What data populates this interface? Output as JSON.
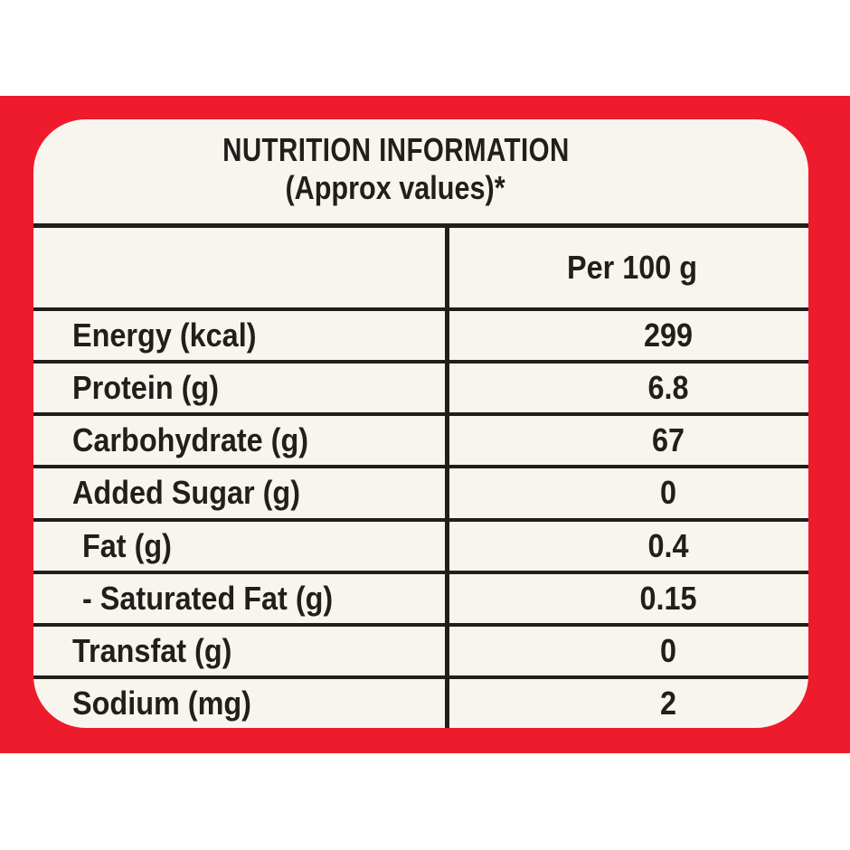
{
  "colors": {
    "band": "#ee1b2c",
    "panel": "#f8f5ef",
    "ink": "#231e1b",
    "page": "#ffffff"
  },
  "label": {
    "title": "NUTRITION INFORMATION",
    "subtitle": "(Approx values)*",
    "column_header": "Per 100 g",
    "rows": [
      {
        "name": "Energy (kcal)",
        "value": "299",
        "indent": false
      },
      {
        "name": "Protein (g)",
        "value": "6.8",
        "indent": false
      },
      {
        "name": "Carbohydrate (g)",
        "value": "67",
        "indent": false
      },
      {
        "name": "Added Sugar (g)",
        "value": "0",
        "indent": false
      },
      {
        "name": "Fat (g)",
        "value": "0.4",
        "indent": true
      },
      {
        "name": "- Saturated Fat (g)",
        "value": "0.15",
        "indent": true
      },
      {
        "name": "Transfat (g)",
        "value": "0",
        "indent": false
      },
      {
        "name": "Sodium (mg)",
        "value": "2",
        "indent": false
      }
    ]
  }
}
